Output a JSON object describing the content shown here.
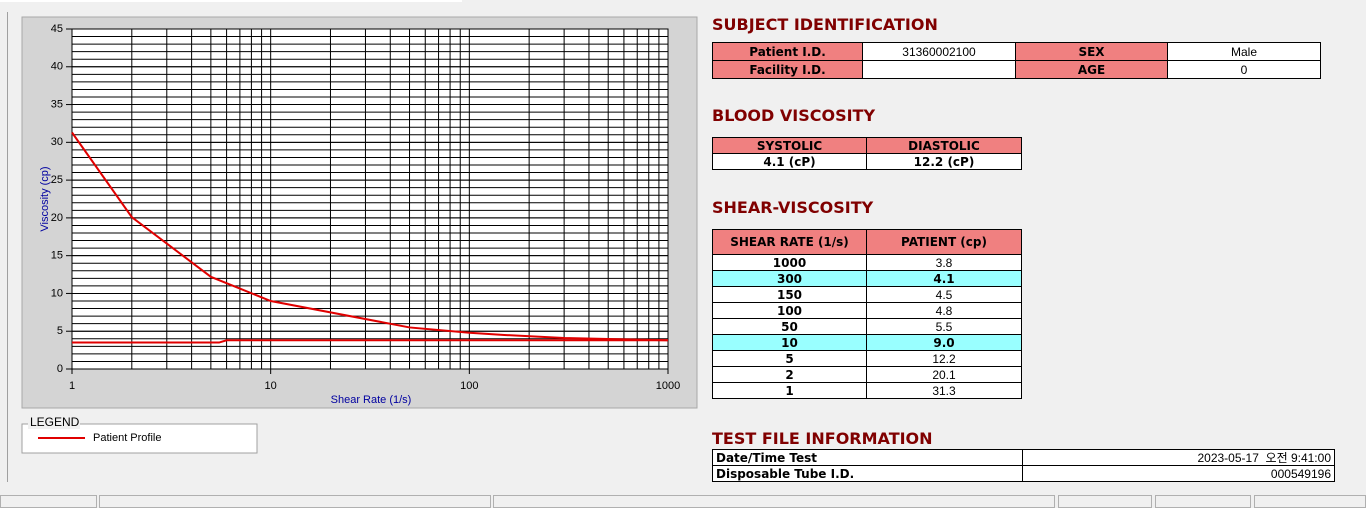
{
  "chart_data": {
    "type": "line",
    "xlabel": "Shear Rate (1/s)",
    "ylabel": "Viscosity (cp)",
    "xscale": "log",
    "xlim": [
      1,
      1000
    ],
    "xticks": [
      1,
      10,
      100,
      1000
    ],
    "ylim": [
      0,
      45
    ],
    "yticks": [
      0,
      5,
      10,
      15,
      20,
      25,
      30,
      35,
      40,
      45
    ],
    "grid": true,
    "legend_title": "LEGEND",
    "series": [
      {
        "name": "Patient Profile",
        "color": "#e00000",
        "x": [
          1,
          2,
          5,
          10,
          50,
          100,
          150,
          300,
          1000
        ],
        "values": [
          31.3,
          20.1,
          12.2,
          9.0,
          5.5,
          4.8,
          4.5,
          4.1,
          3.8
        ]
      },
      {
        "color": "#e00000",
        "x": [
          1,
          5.5,
          6,
          1000
        ],
        "values": [
          3.5,
          3.5,
          3.8,
          3.8
        ]
      }
    ]
  },
  "subject_identification": {
    "title": "SUBJECT IDENTIFICATION",
    "label_color": "#f08080",
    "rows": [
      [
        "Patient I.D.",
        "31360002100",
        "SEX",
        "Male"
      ],
      [
        "Facility I.D.",
        null,
        "AGE",
        "0"
      ]
    ]
  },
  "blood_viscosity": {
    "title": "BLOOD VISCOSITY",
    "header_color": "#f08080",
    "headers": [
      "SYSTOLIC",
      "DIASTOLIC"
    ],
    "values": [
      "4.1 (cP)",
      "12.2 (cP)"
    ]
  },
  "shear_viscosity": {
    "title": "SHEAR-VISCOSITY",
    "header_color": "#f08080",
    "highlight_color": "#99ffff",
    "highlight_rows": [
      1,
      5
    ],
    "headers": [
      "SHEAR RATE (1/s)",
      "PATIENT (cp)"
    ],
    "rows": [
      [
        "1000",
        "3.8"
      ],
      [
        "300",
        "4.1"
      ],
      [
        "150",
        "4.5"
      ],
      [
        "100",
        "4.8"
      ],
      [
        "50",
        "5.5"
      ],
      [
        "10",
        "9.0"
      ],
      [
        "5",
        "12.2"
      ],
      [
        "2",
        "20.1"
      ],
      [
        "1",
        "31.3"
      ]
    ]
  },
  "test_file": {
    "title": "TEST FILE INFORMATION",
    "rows": [
      [
        "Date/Time Test",
        "2023-05-17  오전 9:41:00"
      ],
      [
        "Disposable Tube I.D.",
        "000549196"
      ]
    ]
  }
}
